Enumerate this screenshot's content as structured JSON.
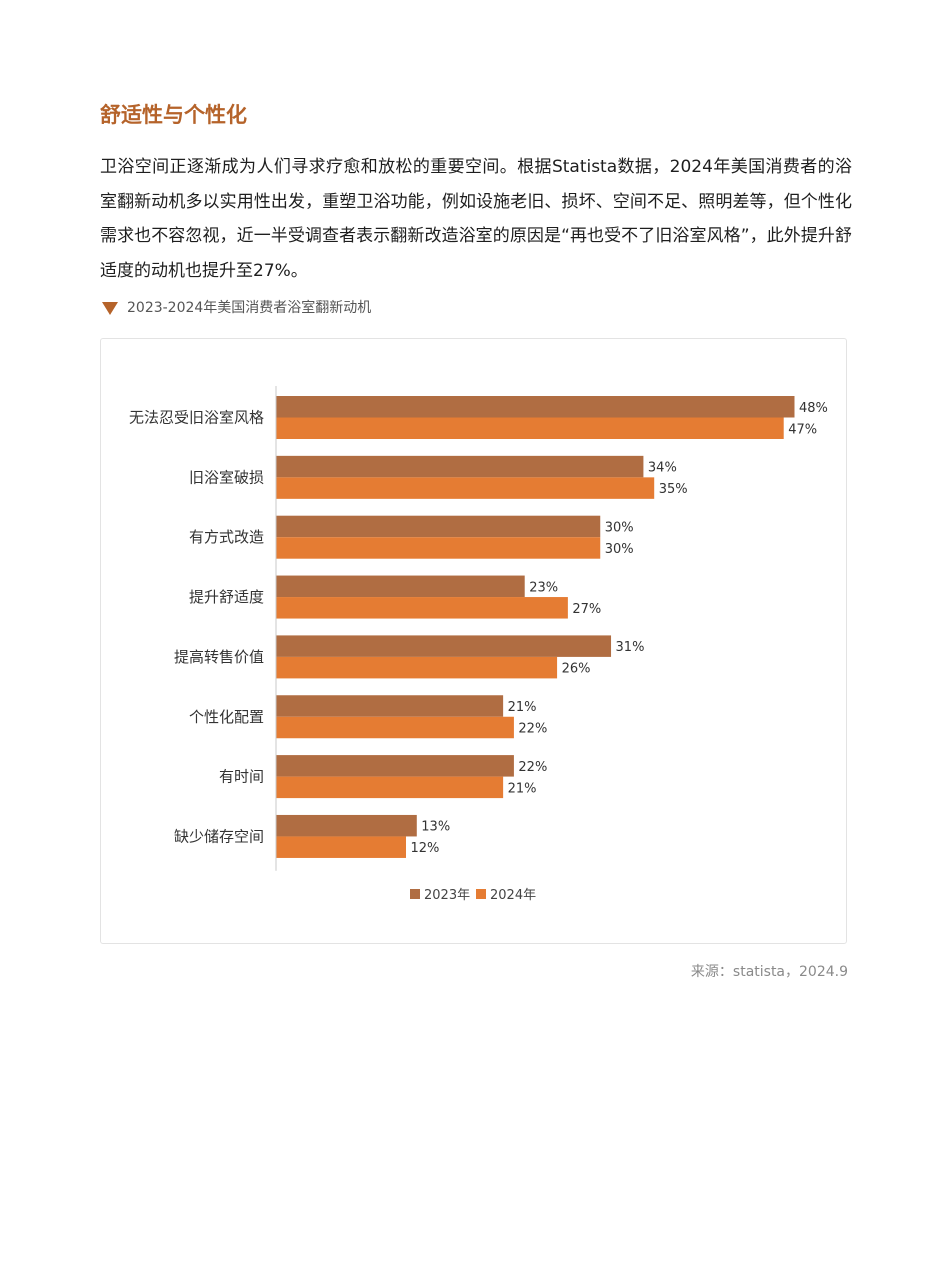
{
  "section": {
    "title": "舒适性与个性化",
    "paragraph": "卫浴空间正逐渐成为人们寻求疗愈和放松的重要空间。根据Statista数据，2024年美国消费者的浴室翻新动机多以实用性出发，重塑卫浴功能，例如设施老旧、损坏、空间不足、照明差等，但个性化需求也不容忽视，近一半受调查者表示翻新改造浴室的原因是“再也受不了旧浴室风格”，此外提升舒适度的动机也提升至27%。"
  },
  "figure": {
    "caption": "2023-2024年美国消费者浴室翻新动机",
    "source": "来源：statista，2024.9"
  },
  "colors": {
    "accent": "#b5632a",
    "series_2023": "#b06d42",
    "series_2024": "#e57c33"
  },
  "chart_data": {
    "type": "bar",
    "orientation": "horizontal",
    "categories": [
      "无法忍受旧浴室风格",
      "旧浴室破损",
      "有方式改造",
      "提升舒适度",
      "提高转售价值",
      "个性化配置",
      "有时间",
      "缺少储存空间"
    ],
    "series": [
      {
        "name": "2023年",
        "values": [
          48,
          34,
          30,
          23,
          31,
          21,
          22,
          13
        ],
        "color": "#b06d42"
      },
      {
        "name": "2024年",
        "values": [
          47,
          35,
          30,
          27,
          26,
          22,
          21,
          12
        ],
        "color": "#e57c33"
      }
    ],
    "value_suffix": "%",
    "xlim": [
      0,
      48
    ],
    "grid": false,
    "legend_position": "bottom"
  }
}
